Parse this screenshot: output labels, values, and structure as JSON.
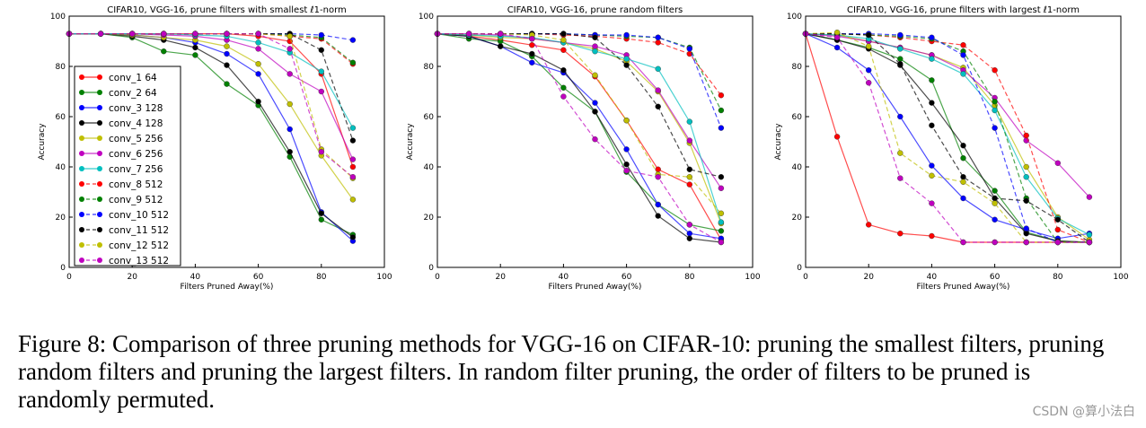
{
  "caption": "Figure 8: Comparison of three pruning methods for VGG-16 on CIFAR-10: pruning the smallest filters, pruning random filters and pruning the largest filters. In random filter pruning, the order of filters to be pruned is randomly permuted.",
  "watermark": "CSDN @算小法白",
  "chart_data": [
    {
      "type": "line",
      "title": "CIFAR10, VGG-16, prune filters with smallest ℓ1-norm",
      "xlabel": "Filters Pruned Away(%)",
      "ylabel": "Accuracy",
      "xlim": [
        0,
        100
      ],
      "ylim": [
        0,
        100
      ],
      "xticks": [
        0,
        20,
        40,
        60,
        80,
        100
      ],
      "yticks": [
        0,
        20,
        40,
        60,
        80,
        100
      ],
      "legend": "left",
      "x": [
        0,
        10,
        20,
        30,
        40,
        50,
        60,
        70,
        80,
        90
      ],
      "series": [
        {
          "name": "conv_1 64",
          "color": "#ff0000",
          "dashed": false,
          "values": [
            93,
            93,
            93,
            93,
            93,
            93,
            92,
            90,
            77,
            40
          ]
        },
        {
          "name": "conv_2 64",
          "color": "#008000",
          "dashed": false,
          "values": [
            93,
            93,
            91.5,
            86,
            84.5,
            73,
            64.5,
            44,
            19,
            13
          ]
        },
        {
          "name": "conv_3 128",
          "color": "#0000ff",
          "dashed": false,
          "values": [
            93,
            93,
            92.5,
            91.5,
            89.5,
            85,
            77,
            55,
            22,
            10.5
          ]
        },
        {
          "name": "conv_4 128",
          "color": "#000000",
          "dashed": false,
          "values": [
            93,
            93,
            92,
            90.5,
            87.5,
            80.5,
            66,
            46,
            21.5,
            12
          ]
        },
        {
          "name": "conv_5 256",
          "color": "#bfbf00",
          "dashed": false,
          "values": [
            93,
            93,
            92.5,
            91.5,
            90.5,
            88,
            81,
            65,
            44.5,
            27
          ]
        },
        {
          "name": "conv_6 256",
          "color": "#bf00bf",
          "dashed": false,
          "values": [
            93,
            93,
            93,
            92.5,
            92,
            90.5,
            87,
            77,
            70,
            43
          ]
        },
        {
          "name": "conv_7 256",
          "color": "#00bfbf",
          "dashed": false,
          "values": [
            93,
            93,
            93,
            93,
            92.5,
            92,
            89.5,
            85.5,
            78,
            55.5
          ]
        },
        {
          "name": "conv_8 512",
          "color": "#ff0000",
          "dashed": true,
          "values": [
            93,
            93,
            93,
            93,
            93,
            93,
            93,
            92,
            91,
            81
          ]
        },
        {
          "name": "conv_9 512",
          "color": "#008000",
          "dashed": true,
          "values": [
            93,
            93,
            93,
            93,
            93,
            93,
            93,
            92.5,
            91.5,
            81.5
          ]
        },
        {
          "name": "conv_10 512",
          "color": "#0000ff",
          "dashed": true,
          "values": [
            93,
            93,
            93,
            93,
            93,
            93,
            93,
            93,
            92.5,
            90.5
          ]
        },
        {
          "name": "conv_11 512",
          "color": "#000000",
          "dashed": true,
          "values": [
            93,
            93,
            93,
            93,
            93,
            93,
            93,
            93,
            86.5,
            50.5
          ]
        },
        {
          "name": "conv_12 512",
          "color": "#bfbf00",
          "dashed": true,
          "values": [
            93,
            93,
            93,
            93,
            93,
            93,
            93,
            92,
            47,
            35.5
          ]
        },
        {
          "name": "conv_13 512",
          "color": "#bf00bf",
          "dashed": true,
          "values": [
            93,
            93,
            93,
            93,
            93,
            93,
            93,
            87,
            46,
            36
          ]
        }
      ]
    },
    {
      "type": "line",
      "title": "CIFAR10, VGG-16, prune random filters",
      "xlabel": "Filters Pruned Away(%)",
      "ylabel": "Accuracy",
      "xlim": [
        0,
        100
      ],
      "ylim": [
        0,
        100
      ],
      "xticks": [
        0,
        20,
        40,
        60,
        80,
        100
      ],
      "yticks": [
        0,
        20,
        40,
        60,
        80,
        100
      ],
      "x": [
        0,
        10,
        20,
        30,
        40,
        50,
        60,
        70,
        80,
        90
      ],
      "series": [
        {
          "color": "#ff0000",
          "dashed": false,
          "values": [
            93,
            92,
            90.5,
            88.5,
            86.5,
            76,
            58.5,
            39,
            33,
            11
          ]
        },
        {
          "color": "#008000",
          "dashed": false,
          "values": [
            93,
            91,
            90,
            84,
            71.5,
            62,
            38,
            25,
            17,
            14.5
          ]
        },
        {
          "color": "#0000ff",
          "dashed": false,
          "values": [
            93,
            92,
            88,
            81.5,
            77.5,
            65.5,
            47,
            25,
            13.5,
            11.5
          ]
        },
        {
          "color": "#000000",
          "dashed": false,
          "values": [
            93,
            92,
            88,
            85,
            78.5,
            62,
            41,
            20.5,
            11.5,
            10
          ]
        },
        {
          "color": "#bfbf00",
          "dashed": false,
          "values": [
            93,
            92.5,
            91.5,
            91,
            89.5,
            87,
            82,
            70,
            49.5,
            17.5
          ]
        },
        {
          "color": "#bf00bf",
          "dashed": false,
          "values": [
            93,
            93,
            92.5,
            91,
            89.5,
            88,
            84.5,
            70.5,
            50.5,
            31.5
          ]
        },
        {
          "color": "#00bfbf",
          "dashed": false,
          "values": [
            93,
            92.5,
            92,
            91.5,
            89.5,
            86,
            83,
            79,
            58,
            18
          ]
        },
        {
          "color": "#ff0000",
          "dashed": true,
          "values": [
            93,
            93,
            93,
            93,
            92.5,
            92,
            91,
            89.5,
            85,
            68.5
          ]
        },
        {
          "color": "#008000",
          "dashed": true,
          "values": [
            93,
            93,
            93,
            93,
            93,
            92.5,
            92,
            91.5,
            87.5,
            62.5
          ]
        },
        {
          "color": "#0000ff",
          "dashed": true,
          "values": [
            93,
            93,
            93,
            93,
            93,
            92.5,
            92.5,
            91.5,
            87,
            55.5
          ]
        },
        {
          "color": "#000000",
          "dashed": true,
          "values": [
            93,
            93,
            93,
            93,
            93,
            91.5,
            80.5,
            64,
            39,
            36
          ]
        },
        {
          "color": "#bfbf00",
          "dashed": true,
          "values": [
            93,
            93,
            93,
            92.5,
            90.5,
            76.5,
            58.5,
            37,
            36,
            21.5
          ]
        },
        {
          "color": "#bf00bf",
          "dashed": true,
          "values": [
            93,
            93,
            93,
            91,
            68,
            51,
            38.5,
            36,
            17,
            10
          ]
        }
      ]
    },
    {
      "type": "line",
      "title": "CIFAR10, VGG-16, prune filters with largest ℓ1-norm",
      "xlabel": "Filters Pruned Away(%)",
      "ylabel": "Accuracy",
      "xlim": [
        0,
        100
      ],
      "ylim": [
        0,
        100
      ],
      "xticks": [
        0,
        20,
        40,
        60,
        80,
        100
      ],
      "yticks": [
        0,
        20,
        40,
        60,
        80,
        100
      ],
      "x": [
        0,
        10,
        20,
        30,
        40,
        50,
        60,
        70,
        80,
        90
      ],
      "series": [
        {
          "color": "#ff0000",
          "dashed": false,
          "values": [
            93,
            52,
            17,
            13.5,
            12.5,
            10,
            10,
            10,
            10,
            10
          ]
        },
        {
          "color": "#008000",
          "dashed": false,
          "values": [
            93,
            90.5,
            87.5,
            83,
            74.5,
            43.5,
            30.5,
            14,
            10.5,
            10
          ]
        },
        {
          "color": "#0000ff",
          "dashed": false,
          "values": [
            93,
            87.5,
            78.5,
            60,
            40.5,
            27.5,
            19,
            15,
            11.5,
            13.5
          ]
        },
        {
          "color": "#000000",
          "dashed": false,
          "values": [
            93,
            90.5,
            87,
            80.5,
            65.5,
            48.5,
            27.5,
            13.5,
            10.5,
            10
          ]
        },
        {
          "color": "#bfbf00",
          "dashed": false,
          "values": [
            93,
            92.5,
            90,
            87.5,
            84.5,
            79.5,
            64.5,
            40,
            20,
            11
          ]
        },
        {
          "color": "#bf00bf",
          "dashed": false,
          "values": [
            93,
            92,
            90,
            87.5,
            84.5,
            78.5,
            67.5,
            50.5,
            41.5,
            28
          ]
        },
        {
          "color": "#00bfbf",
          "dashed": false,
          "values": [
            93,
            92.5,
            91,
            87,
            83,
            77,
            62.5,
            36,
            19.5,
            13
          ]
        },
        {
          "color": "#ff0000",
          "dashed": true,
          "values": [
            93,
            93,
            92.5,
            91.5,
            90,
            88.5,
            78.5,
            52.5,
            15,
            10
          ]
        },
        {
          "color": "#008000",
          "dashed": true,
          "values": [
            93,
            93,
            92.5,
            92,
            91,
            86,
            66,
            27.5,
            10,
            10
          ]
        },
        {
          "color": "#0000ff",
          "dashed": true,
          "values": [
            93,
            93,
            93,
            92.5,
            91.5,
            84.5,
            55.5,
            15.5,
            10,
            10
          ]
        },
        {
          "color": "#000000",
          "dashed": true,
          "values": [
            93,
            93,
            92.5,
            81,
            56.5,
            36,
            27.5,
            26.5,
            19,
            10
          ]
        },
        {
          "color": "#bfbf00",
          "dashed": true,
          "values": [
            93,
            93.5,
            88,
            45.5,
            36.5,
            34,
            25.5,
            10,
            10,
            10
          ]
        },
        {
          "color": "#bf00bf",
          "dashed": true,
          "values": [
            93,
            91.5,
            73.5,
            35.5,
            25.5,
            10,
            10,
            10,
            10,
            10
          ]
        }
      ]
    }
  ]
}
